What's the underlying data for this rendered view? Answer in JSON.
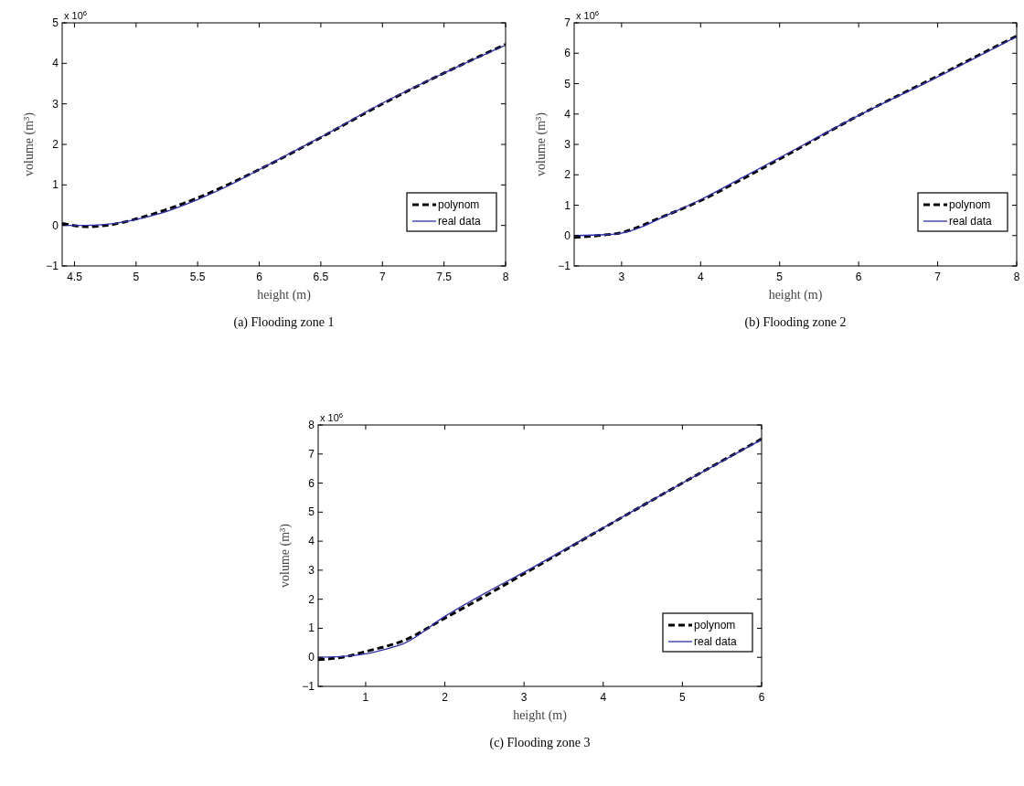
{
  "chart_data": [
    {
      "type": "line",
      "title": "(a) Flooding zone 1",
      "xlabel": "height (m)",
      "ylabel": "volume (m³)",
      "annotations": [
        "x 10$^{6}$"
      ],
      "xlim": [
        4.4,
        8
      ],
      "xticks": [
        4.5,
        5,
        5.5,
        6,
        6.5,
        7,
        7.5,
        8
      ],
      "ylim": [
        -1,
        5
      ],
      "yticks": [
        -1,
        0,
        1,
        2,
        3,
        4,
        5
      ],
      "legend": "bottom right",
      "grid": false,
      "series": [
        {
          "name": "polynom",
          "color": "#000000",
          "line_style": "dashed",
          "x": [
            4.4,
            4.6,
            4.8,
            5,
            5.5,
            6,
            6.5,
            7,
            7.5,
            8
          ],
          "values": [
            0.05,
            -0.03,
            0.02,
            0.16,
            0.68,
            1.38,
            2.17,
            3.0,
            3.76,
            4.47
          ]
        },
        {
          "name": "real data",
          "color": "#2e2eaa",
          "line_style": "solid",
          "x": [
            4.4,
            4.6,
            4.8,
            5,
            5.2,
            5.5,
            5.75,
            6,
            6.25,
            6.5,
            7,
            7.5,
            8
          ],
          "values": [
            0,
            0,
            0.04,
            0.15,
            0.3,
            0.64,
            0.98,
            1.38,
            1.78,
            2.18,
            3.02,
            3.76,
            4.45
          ]
        }
      ]
    },
    {
      "type": "line",
      "title": "(b) Flooding zone 2",
      "xlabel": "height (m)",
      "ylabel": "volume (m³)",
      "annotations": [
        "x 10$^{6}$"
      ],
      "xlim": [
        2.4,
        8
      ],
      "xticks": [
        3,
        4,
        5,
        6,
        7,
        8
      ],
      "ylim": [
        -1,
        7
      ],
      "yticks": [
        -1,
        0,
        1,
        2,
        3,
        4,
        5,
        6,
        7
      ],
      "legend": "bottom right",
      "grid": false,
      "series": [
        {
          "name": "polynom",
          "color": "#000000",
          "line_style": "dashed",
          "x": [
            2.4,
            2.7,
            3,
            3.5,
            4,
            4.5,
            5,
            6,
            7,
            8
          ],
          "values": [
            -0.06,
            0.0,
            0.1,
            0.6,
            1.15,
            1.82,
            2.52,
            3.95,
            5.25,
            6.57
          ]
        },
        {
          "name": "real data",
          "color": "#2e2eaa",
          "line_style": "solid",
          "x": [
            2.4,
            2.8,
            3,
            3.25,
            3.5,
            4,
            4.5,
            5,
            6,
            7,
            8
          ],
          "values": [
            0.0,
            0.03,
            0.08,
            0.28,
            0.58,
            1.18,
            1.87,
            2.56,
            3.95,
            5.22,
            6.55
          ]
        }
      ]
    },
    {
      "type": "line",
      "title": "(c) Flooding zone 3",
      "xlabel": "height (m)",
      "ylabel": "volume (m³)",
      "annotations": [
        "x 10$^{6}$"
      ],
      "xlim": [
        0.4,
        6
      ],
      "xticks": [
        1,
        2,
        3,
        4,
        5,
        6
      ],
      "ylim": [
        -1,
        8
      ],
      "yticks": [
        -1,
        0,
        1,
        2,
        3,
        4,
        5,
        6,
        7,
        8
      ],
      "legend": "bottom right",
      "grid": false,
      "series": [
        {
          "name": "polynom",
          "color": "#000000",
          "line_style": "dashed",
          "x": [
            0.4,
            0.7,
            1,
            1.5,
            2,
            2.5,
            3,
            4,
            5,
            6
          ],
          "values": [
            -0.08,
            0.0,
            0.2,
            0.6,
            1.35,
            2.1,
            2.88,
            4.45,
            6.0,
            7.52
          ]
        },
        {
          "name": "real data",
          "color": "#2e2eaa",
          "line_style": "solid",
          "x": [
            0.4,
            0.8,
            1,
            1.25,
            1.5,
            2,
            2.5,
            3,
            4,
            5,
            6
          ],
          "values": [
            0,
            0.05,
            0.12,
            0.28,
            0.5,
            1.41,
            2.2,
            2.93,
            4.46,
            6.0,
            7.5
          ]
        }
      ]
    }
  ]
}
